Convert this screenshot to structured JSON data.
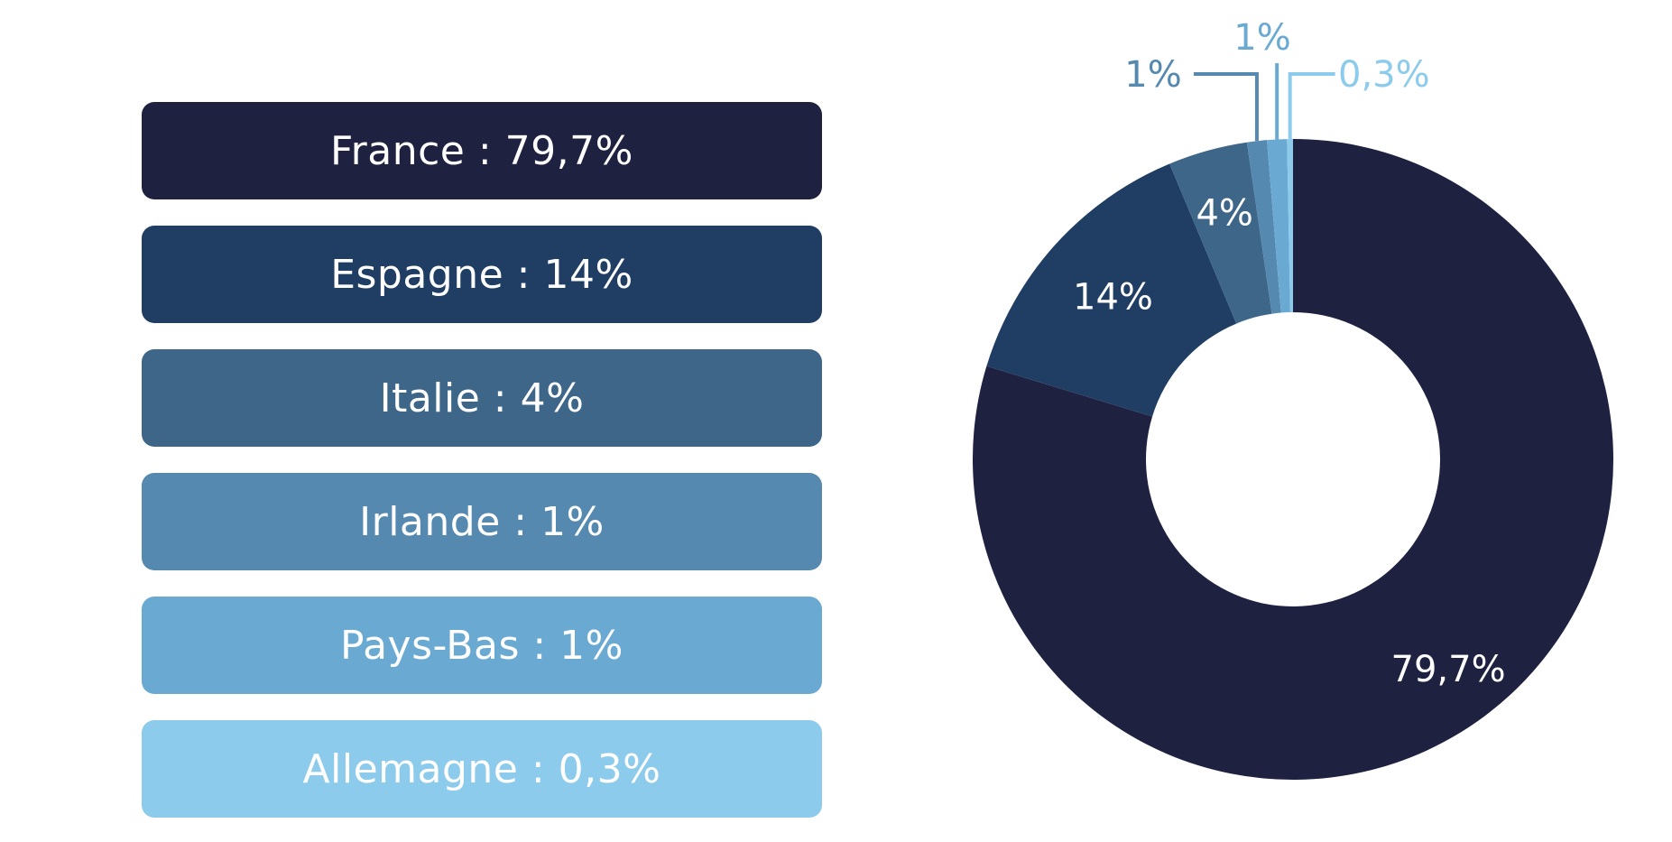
{
  "chart_data": {
    "type": "pie",
    "donut": true,
    "legend_placement": "left",
    "slices": [
      {
        "category": "France",
        "value": 79.7,
        "value_label": "79,7%",
        "legend": "France : 79,7%",
        "color": "#1e2140"
      },
      {
        "category": "Espagne",
        "value": 14,
        "value_label": "14%",
        "legend": "Espagne : 14%",
        "color": "#203d63"
      },
      {
        "category": "Italie",
        "value": 4,
        "value_label": "4%",
        "legend": "Italie : 4%",
        "color": "#3d6689"
      },
      {
        "category": "Irlande",
        "value": 1,
        "value_label": "1%",
        "legend": "Irlande : 1%",
        "color": "#5589b0"
      },
      {
        "category": "Pays-Bas",
        "value": 1,
        "value_label": "1%",
        "legend": "Pays-Bas : 1%",
        "color": "#6aaad2"
      },
      {
        "category": "Allemagne",
        "value": 0.3,
        "value_label": "0,3%",
        "legend": "Allemagne : 0,3%",
        "color": "#8ccbeb"
      }
    ]
  }
}
